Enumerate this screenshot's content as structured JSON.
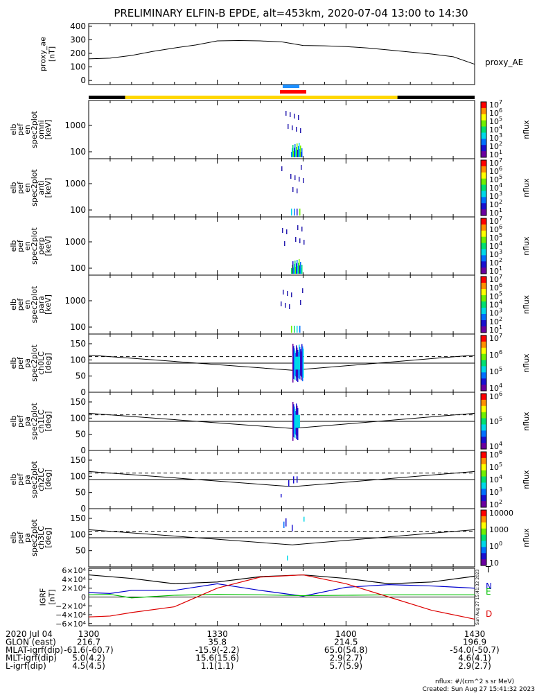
{
  "title": "PRELIMINARY ELFIN-B EPDE, alt=453km, 2020-07-04 13:00 to 14:30",
  "colors": {
    "axis": "#000000",
    "sunlight_bar": "#ffd700",
    "shadow_bar": "#000000",
    "ibo_marker": "#1e90ff",
    "obo_marker": "#ff0000",
    "igrf_T": "#000000",
    "igrf_N": "#0000cd",
    "igrf_E": "#00c000",
    "igrf_D": "#dd0000",
    "colorbar_stops": [
      "#6a00a0",
      "#1a10d0",
      "#0070ff",
      "#00d8e8",
      "#00e070",
      "#70f000",
      "#ffff00",
      "#ff9000",
      "#ff0000"
    ]
  },
  "chart_data": [
    {
      "id": "ae",
      "type": "line",
      "ylabel": [
        "proxy_ae",
        "[nT]"
      ],
      "yticks": [
        0,
        100,
        200,
        300,
        400
      ],
      "ylim": [
        -30,
        420
      ],
      "series": [
        {
          "name": "proxy_AE",
          "x": [
            0,
            5,
            10,
            15,
            20,
            25,
            30,
            35,
            40,
            45,
            50,
            55,
            60,
            65,
            70,
            75,
            80,
            85,
            90
          ],
          "y": [
            160,
            165,
            185,
            215,
            240,
            262,
            292,
            295,
            292,
            285,
            258,
            256,
            250,
            240,
            225,
            210,
            195,
            175,
            120
          ]
        }
      ]
    },
    {
      "id": "omni",
      "type": "heatmap",
      "ylabel": [
        "elb",
        "pef",
        "en",
        "spec2plot",
        "omni",
        "[keV]"
      ],
      "yticks": [
        "100",
        "1000"
      ],
      "colorbar": {
        "label": "nflux",
        "ticks": [
          "101",
          "102",
          "103",
          "104",
          "105",
          "106",
          "107"
        ]
      }
    },
    {
      "id": "anti",
      "type": "heatmap",
      "ylabel": [
        "elb",
        "pef",
        "en",
        "spec2plot",
        "anti",
        "[keV]"
      ],
      "yticks": [
        "100",
        "1000"
      ],
      "colorbar": {
        "label": "nflux",
        "ticks": [
          "101",
          "102",
          "103",
          "104",
          "105",
          "106",
          "107"
        ]
      }
    },
    {
      "id": "perp",
      "type": "heatmap",
      "ylabel": [
        "elb",
        "pef",
        "en",
        "spec2plot",
        "perp",
        "[keV]"
      ],
      "yticks": [
        "100",
        "1000"
      ],
      "colorbar": {
        "label": "nflux",
        "ticks": [
          "101",
          "102",
          "103",
          "104",
          "105",
          "106",
          "107"
        ]
      }
    },
    {
      "id": "para",
      "type": "heatmap",
      "ylabel": [
        "elb",
        "pef",
        "en",
        "spec2plot",
        "para",
        "[keV]"
      ],
      "yticks": [
        "100",
        "1000"
      ],
      "colorbar": {
        "label": "nflux",
        "ticks": [
          "101",
          "102",
          "103",
          "104",
          "105",
          "106",
          "107"
        ]
      }
    },
    {
      "id": "ch0",
      "type": "heatmap",
      "ylabel": [
        "elb",
        "pef",
        "pa",
        "spec2plot",
        "ch0LC",
        "[deg]"
      ],
      "yticks": [
        0,
        50,
        100,
        150
      ],
      "ylim": [
        0,
        180
      ],
      "colorbar": {
        "label": "nflux",
        "ticks": [
          "104",
          "105",
          "106",
          "107"
        ]
      }
    },
    {
      "id": "ch1",
      "type": "heatmap",
      "ylabel": [
        "elb",
        "pef",
        "pa",
        "spec2plot",
        "ch1LC",
        "[deg]"
      ],
      "yticks": [
        0,
        50,
        100,
        150
      ],
      "ylim": [
        0,
        180
      ],
      "colorbar": {
        "label": "nflux",
        "ticks": [
          "104",
          "105",
          "106"
        ]
      }
    },
    {
      "id": "ch2",
      "type": "heatmap",
      "ylabel": [
        "elb",
        "pef",
        "pa",
        "spec2plot",
        "ch2LC",
        "[deg]"
      ],
      "yticks": [
        0,
        50,
        100,
        150
      ],
      "ylim": [
        0,
        180
      ],
      "colorbar": {
        "label": "nflux",
        "ticks": [
          "102",
          "103",
          "104",
          "105",
          "106"
        ]
      }
    },
    {
      "id": "ch3",
      "type": "heatmap",
      "ylabel": [
        "elb",
        "pef",
        "pa",
        "spec2plot",
        "ch3LC",
        "[deg]"
      ],
      "yticks": [
        50,
        100,
        150
      ],
      "ylim": [
        0,
        180
      ],
      "colorbar": {
        "label": "nflux",
        "ticks": [
          "10",
          "100",
          "1000",
          "10000"
        ]
      }
    },
    {
      "id": "igrf",
      "type": "line",
      "ylabel": [
        "IGRF",
        "[nT]"
      ],
      "yticks": [
        "6×10⁴",
        "4×10⁴",
        "2×10⁴",
        "0",
        "−2×10⁴",
        "−4×10⁴",
        "−6×10⁴"
      ],
      "ylim": [
        -65000,
        65000
      ],
      "series": [
        {
          "name": "T",
          "x": [
            0,
            10,
            20,
            30,
            40,
            50,
            60,
            70,
            80,
            90
          ],
          "y": [
            50000,
            42000,
            30000,
            34000,
            46000,
            50000,
            42000,
            30000,
            34000,
            47000
          ]
        },
        {
          "name": "N",
          "x": [
            0,
            5,
            10,
            20,
            30,
            40,
            50,
            60,
            70,
            80,
            90
          ],
          "y": [
            10000,
            8000,
            15000,
            15000,
            30000,
            15000,
            2000,
            22000,
            28000,
            25000,
            20000
          ]
        },
        {
          "name": "E",
          "x": [
            0,
            5,
            10,
            20,
            30,
            40,
            50,
            60,
            70,
            80,
            90
          ],
          "y": [
            5000,
            6000,
            -2000,
            4000,
            6000,
            5000,
            3000,
            4000,
            5000,
            5000,
            5000
          ]
        },
        {
          "name": "D",
          "x": [
            0,
            5,
            10,
            20,
            30,
            40,
            50,
            60,
            70,
            80,
            90
          ],
          "y": [
            -45000,
            -43000,
            -35000,
            -22000,
            20000,
            45000,
            50000,
            30000,
            0,
            -30000,
            -50000
          ]
        }
      ]
    }
  ],
  "time_axis": {
    "rows": [
      {
        "label": "2020 Jul 04",
        "values": [
          "1300",
          "1330",
          "1400",
          "1430"
        ]
      },
      {
        "label": "GLON (east)",
        "values": [
          "216.7",
          "35.8",
          "214.5",
          "196.9"
        ]
      },
      {
        "label": "MLAT-igrf(dip)",
        "values": [
          "-61.6(-60.7)",
          "-15.9(-2.2)",
          "65.0(54.8)",
          "-54.0(-50.7)"
        ]
      },
      {
        "label": "MLT-igrf(dip)",
        "values": [
          "5.0(4.2)",
          "15.6(15.6)",
          "2.9(2.7)",
          "4.6(4.1)"
        ]
      },
      {
        "label": "L-igrf(dip)",
        "values": [
          "4.5(4.5)",
          "1.1(1.1)",
          "5.7(5.9)",
          "2.9(2.7)"
        ]
      }
    ]
  },
  "footer": {
    "units": "nflux: #/(cm^2 s sr MeV)",
    "created": "Created: Sun Aug 27 15:41:32 2023",
    "vertical_stamp": "Sun Aug 27 15:41:32 2023"
  }
}
